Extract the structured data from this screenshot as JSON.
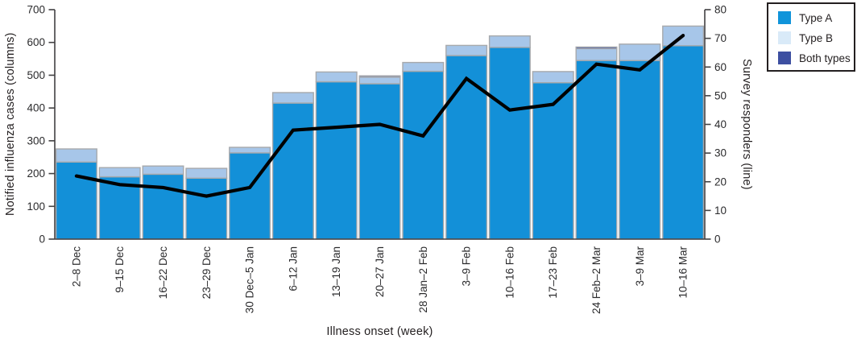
{
  "chart_data": {
    "type": "bar",
    "subtype": "stacked-columns-with-line",
    "categories": [
      "2–8 Dec",
      "9–15 Dec",
      "16–22 Dec",
      "23–29 Dec",
      "30 Dec–5 Jan",
      "6–12 Jan",
      "13–19 Jan",
      "20–27 Jan",
      "28 Jan–2 Feb",
      "3–9 Feb",
      "10–16 Feb",
      "17–23 Feb",
      "24 Feb–2 Mar",
      "3–9 Mar",
      "10–16 Mar"
    ],
    "bars": [
      {
        "name": "Type A",
        "color": "#1390d8",
        "values": [
          235,
          190,
          198,
          186,
          263,
          415,
          480,
          474,
          512,
          560,
          585,
          477,
          545,
          545,
          590
        ]
      },
      {
        "name": "Type B",
        "color": "#a7c6e9",
        "values": [
          40,
          28,
          25,
          30,
          17,
          32,
          30,
          20,
          27,
          31,
          35,
          34,
          36,
          50,
          60
        ]
      },
      {
        "name": "Both types",
        "color": "#3d4fa1",
        "values": [
          0,
          0,
          0,
          0,
          0,
          0,
          0,
          4,
          0,
          0,
          0,
          0,
          5,
          0,
          0
        ]
      }
    ],
    "line": {
      "name": "Survey responders",
      "axis": "right",
      "color": "#000000",
      "values": [
        22,
        19,
        18,
        15,
        18,
        38,
        39,
        40,
        36,
        56,
        45,
        47,
        61,
        59,
        71
      ]
    },
    "left_axis": {
      "label": "Notified influenza cases (columns)",
      "min": 0,
      "max": 700,
      "step": 100
    },
    "right_axis": {
      "label": "Survey responders (line)",
      "min": 0,
      "max": 80,
      "step": 10
    },
    "xlabel": "Illness onset (week)",
    "legend": [
      {
        "label": "Type A",
        "color": "#1094da"
      },
      {
        "label": "Type B",
        "color": "#d9eaf8"
      },
      {
        "label": "Both types",
        "color": "#3d4fa1"
      }
    ],
    "colors": {
      "border": "#a7a9ac",
      "axis": "#414042",
      "text": "#2b2b2d"
    },
    "layout": {
      "grid": false,
      "legend_position": "top-right",
      "x_tick_rotation": 90
    }
  }
}
